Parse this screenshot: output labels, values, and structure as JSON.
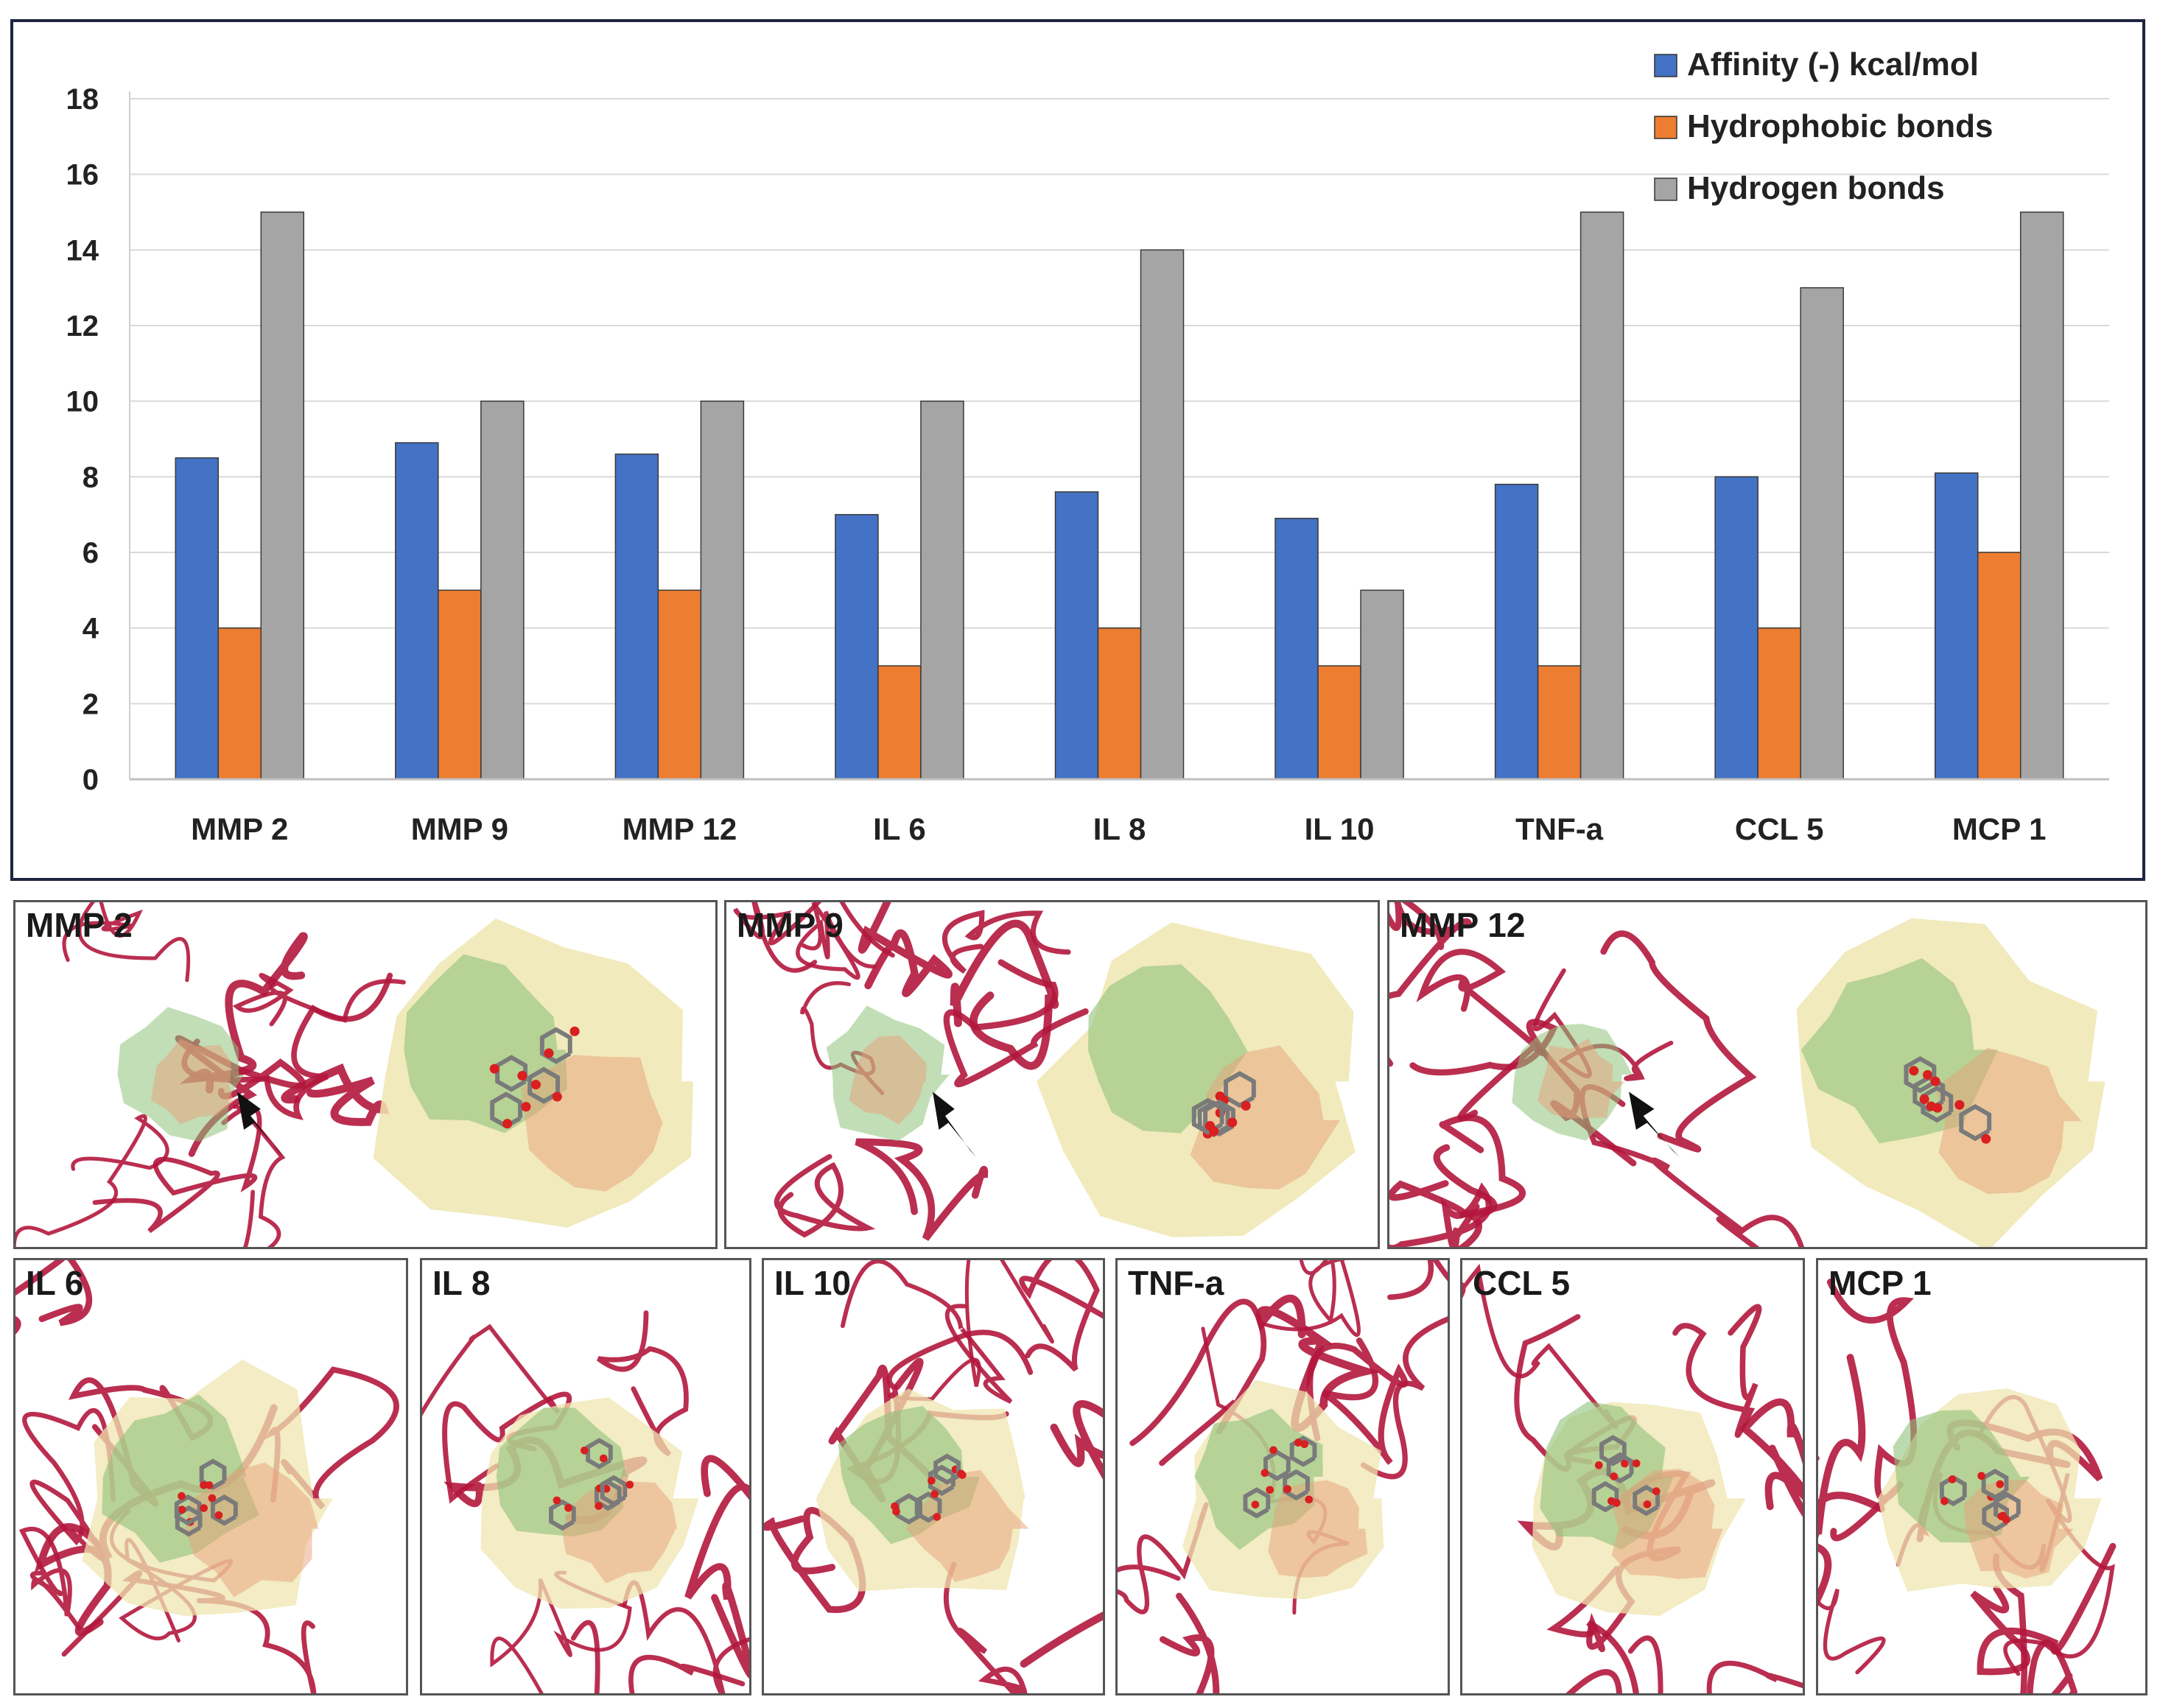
{
  "chart_data": {
    "type": "bar",
    "title": "",
    "xlabel": "",
    "ylabel": "",
    "ylim": [
      0,
      18
    ],
    "yticks": [
      0,
      2,
      4,
      6,
      8,
      10,
      12,
      14,
      16,
      18
    ],
    "grid": true,
    "legend_position": "top-right",
    "categories": [
      "MMP 2",
      "MMP 9",
      "MMP 12",
      "IL 6",
      "IL 8",
      "IL 10",
      "TNF-a",
      "CCL 5",
      "MCP 1"
    ],
    "series": [
      {
        "name": "Affinity (-) kcal/mol",
        "color": "#4472c4",
        "values": [
          8.5,
          8.9,
          8.6,
          7.0,
          7.6,
          6.9,
          7.8,
          8.0,
          8.1
        ]
      },
      {
        "name": "Hydrophobic bonds",
        "color": "#ed7d31",
        "values": [
          4,
          5,
          5,
          3,
          4,
          3,
          3,
          4,
          6
        ]
      },
      {
        "name": "Hydrogen bonds",
        "color": "#a5a5a5",
        "values": [
          15,
          10,
          10,
          10,
          14,
          5,
          15,
          13,
          15
        ]
      }
    ]
  },
  "panels": {
    "top_row": [
      {
        "label": "MMP 2",
        "icon": "protein-ligand-docking-image"
      },
      {
        "label": "MMP 9",
        "icon": "protein-ligand-docking-image"
      },
      {
        "label": "MMP 12",
        "icon": "protein-ligand-docking-image"
      }
    ],
    "bottom_row": [
      {
        "label": "IL 6",
        "icon": "protein-ligand-docking-image"
      },
      {
        "label": "IL 8",
        "icon": "protein-ligand-docking-image"
      },
      {
        "label": "IL 10",
        "icon": "protein-ligand-docking-image"
      },
      {
        "label": "TNF-a",
        "icon": "protein-ligand-docking-image"
      },
      {
        "label": "CCL 5",
        "icon": "protein-ligand-docking-image"
      },
      {
        "label": "MCP 1",
        "icon": "protein-ligand-docking-image"
      }
    ]
  },
  "colors": {
    "ribbon": "#b3173d",
    "surface_green": "#8fc27a",
    "surface_orange": "#e8a07a",
    "surface_yellow": "#efe6b0",
    "ligand": "#7a7a7a",
    "oxygen": "#d91f1f",
    "frame": "#1d2540"
  }
}
